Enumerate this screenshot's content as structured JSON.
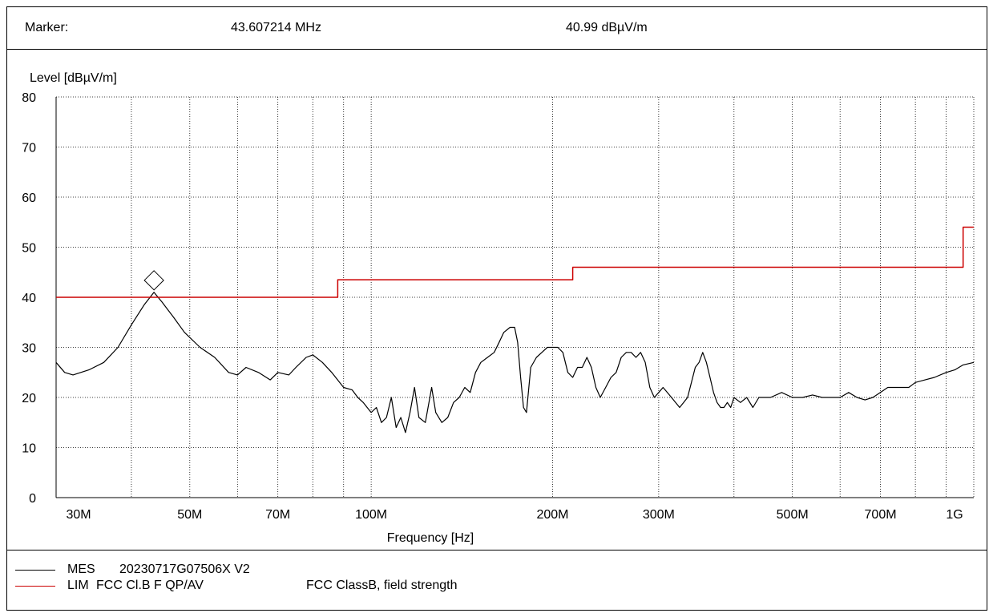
{
  "marker": {
    "label": "Marker:",
    "frequency": "43.607214 MHz",
    "level": "40.99 dBµV/m",
    "freq_value_mhz": 43.607214,
    "level_value": 40.99
  },
  "legend": {
    "mes": {
      "key": "MES",
      "name": "20230717G07506X V2",
      "color": "#000000"
    },
    "lim": {
      "key": "LIM",
      "name": "FCC Cl.B F QP/AV",
      "desc": "FCC ClassB, field strength",
      "color": "#cc0000"
    }
  },
  "chart_data": {
    "type": "line",
    "ylabel": "Level [dBµV/m]",
    "xlabel": "Frequency [Hz]",
    "x_scale": "log",
    "xlim_mhz": [
      30,
      1000
    ],
    "ylim": [
      0,
      80
    ],
    "grid": true,
    "y_ticks": [
      "0",
      "10",
      "20",
      "30",
      "40",
      "50",
      "60",
      "70",
      "80"
    ],
    "x_ticks": [
      {
        "label": "30M",
        "mhz": 30
      },
      {
        "label": "50M",
        "mhz": 50
      },
      {
        "label": "70M",
        "mhz": 70
      },
      {
        "label": "100M",
        "mhz": 100
      },
      {
        "label": "200M",
        "mhz": 200
      },
      {
        "label": "300M",
        "mhz": 300
      },
      {
        "label": "500M",
        "mhz": 500
      },
      {
        "label": "700M",
        "mhz": 700
      },
      {
        "label": "1G",
        "mhz": 1000
      }
    ],
    "series": [
      {
        "name": "MES 20230717G07506X V2",
        "color": "#000000",
        "points": [
          [
            30,
            27
          ],
          [
            31,
            25
          ],
          [
            32,
            24.5
          ],
          [
            34,
            25.5
          ],
          [
            36,
            27
          ],
          [
            38,
            30
          ],
          [
            40,
            34.5
          ],
          [
            42,
            38.5
          ],
          [
            43.6,
            41
          ],
          [
            45,
            39
          ],
          [
            47,
            36
          ],
          [
            49,
            33
          ],
          [
            52,
            30
          ],
          [
            55,
            28
          ],
          [
            58,
            25
          ],
          [
            60,
            24.5
          ],
          [
            62,
            26
          ],
          [
            65,
            25
          ],
          [
            68,
            23.5
          ],
          [
            70,
            25
          ],
          [
            73,
            24.5
          ],
          [
            75,
            26
          ],
          [
            78,
            28
          ],
          [
            80,
            28.5
          ],
          [
            83,
            27
          ],
          [
            86,
            25
          ],
          [
            90,
            22
          ],
          [
            93,
            21.5
          ],
          [
            95,
            20
          ],
          [
            97,
            19
          ],
          [
            100,
            17
          ],
          [
            102,
            18
          ],
          [
            104,
            15
          ],
          [
            106,
            16
          ],
          [
            108,
            20
          ],
          [
            110,
            14
          ],
          [
            112,
            16
          ],
          [
            114,
            13
          ],
          [
            116,
            17
          ],
          [
            118,
            22
          ],
          [
            120,
            16
          ],
          [
            123,
            15
          ],
          [
            126,
            22
          ],
          [
            128,
            17
          ],
          [
            131,
            15
          ],
          [
            134,
            16
          ],
          [
            137,
            19
          ],
          [
            140,
            20
          ],
          [
            143,
            22
          ],
          [
            146,
            21
          ],
          [
            149,
            25
          ],
          [
            152,
            27
          ],
          [
            156,
            28
          ],
          [
            160,
            29
          ],
          [
            163,
            31
          ],
          [
            166,
            33
          ],
          [
            170,
            34
          ],
          [
            173,
            34
          ],
          [
            175,
            31
          ],
          [
            177,
            24
          ],
          [
            179,
            18
          ],
          [
            181,
            17
          ],
          [
            184,
            26
          ],
          [
            188,
            28
          ],
          [
            192,
            29
          ],
          [
            196,
            30
          ],
          [
            200,
            30
          ],
          [
            204,
            30
          ],
          [
            208,
            29
          ],
          [
            212,
            25
          ],
          [
            216,
            24
          ],
          [
            220,
            26
          ],
          [
            224,
            26
          ],
          [
            228,
            28
          ],
          [
            232,
            26
          ],
          [
            236,
            22
          ],
          [
            240,
            20
          ],
          [
            245,
            22
          ],
          [
            250,
            24
          ],
          [
            255,
            25
          ],
          [
            260,
            28
          ],
          [
            265,
            29
          ],
          [
            270,
            29
          ],
          [
            275,
            28
          ],
          [
            280,
            29
          ],
          [
            285,
            27
          ],
          [
            290,
            22
          ],
          [
            295,
            20
          ],
          [
            300,
            21
          ],
          [
            305,
            22
          ],
          [
            310,
            21
          ],
          [
            315,
            20
          ],
          [
            320,
            19
          ],
          [
            325,
            18
          ],
          [
            330,
            19
          ],
          [
            335,
            20
          ],
          [
            340,
            23
          ],
          [
            345,
            26
          ],
          [
            350,
            27
          ],
          [
            355,
            29
          ],
          [
            360,
            27
          ],
          [
            365,
            24
          ],
          [
            370,
            21
          ],
          [
            375,
            19
          ],
          [
            380,
            18
          ],
          [
            385,
            18
          ],
          [
            390,
            19
          ],
          [
            395,
            18
          ],
          [
            400,
            20
          ],
          [
            410,
            19
          ],
          [
            420,
            20
          ],
          [
            430,
            18
          ],
          [
            440,
            20
          ],
          [
            450,
            20
          ],
          [
            460,
            20
          ],
          [
            480,
            21
          ],
          [
            500,
            20
          ],
          [
            520,
            20
          ],
          [
            540,
            20.5
          ],
          [
            560,
            20
          ],
          [
            580,
            20
          ],
          [
            600,
            20
          ],
          [
            620,
            21
          ],
          [
            640,
            20
          ],
          [
            660,
            19.5
          ],
          [
            680,
            20
          ],
          [
            700,
            21
          ],
          [
            720,
            22
          ],
          [
            750,
            22
          ],
          [
            780,
            22
          ],
          [
            800,
            23
          ],
          [
            830,
            23.5
          ],
          [
            860,
            24
          ],
          [
            900,
            25
          ],
          [
            930,
            25.5
          ],
          [
            960,
            26.5
          ],
          [
            1000,
            27
          ]
        ]
      },
      {
        "name": "LIM FCC Cl.B F QP/AV",
        "color": "#cc0000",
        "points": [
          [
            30,
            40
          ],
          [
            88,
            40
          ],
          [
            88,
            43.5
          ],
          [
            216,
            43.5
          ],
          [
            216,
            46
          ],
          [
            960,
            46
          ],
          [
            960,
            54
          ],
          [
            1000,
            54
          ]
        ]
      }
    ],
    "annotations": [
      {
        "type": "marker-diamond",
        "x_mhz": 43.607214,
        "y": 40.99
      }
    ]
  }
}
